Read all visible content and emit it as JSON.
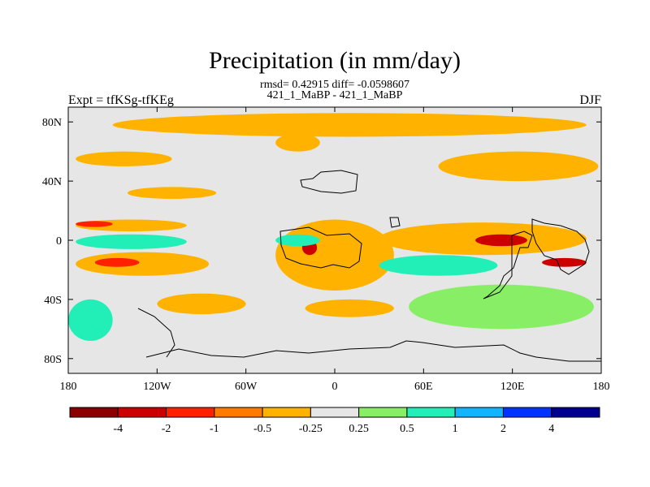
{
  "chart_data": {
    "type": "heatmap",
    "title": "Precipitation (in mm/day)",
    "subtitle_stats": "rmsd= 0.42915  diff= -0.0598607",
    "subtitle_cases": "421_1_MaBP - 421_1_MaBP",
    "left_label": "Expt = tfKSg-tfKEg",
    "right_label": "DJF",
    "x_ticks": [
      {
        "value": -180,
        "label": "180"
      },
      {
        "value": -120,
        "label": "120W"
      },
      {
        "value": -60,
        "label": "60W"
      },
      {
        "value": 0,
        "label": "0"
      },
      {
        "value": 60,
        "label": "60E"
      },
      {
        "value": 120,
        "label": "120E"
      },
      {
        "value": 180,
        "label": "180"
      }
    ],
    "y_ticks": [
      {
        "value": 80,
        "label": "80N"
      },
      {
        "value": 40,
        "label": "40N"
      },
      {
        "value": 0,
        "label": "0"
      },
      {
        "value": -40,
        "label": "40S"
      },
      {
        "value": -80,
        "label": "80S"
      }
    ],
    "xlim": [
      -180,
      180
    ],
    "ylim": [
      -90,
      90
    ],
    "colorbar": {
      "colors": [
        "#8B0000",
        "#CC0000",
        "#FF2000",
        "#FF7A00",
        "#FFB300",
        "#E6E6E6",
        "#88EE66",
        "#22EEB8",
        "#11B5FF",
        "#0033FF",
        "#000090"
      ],
      "labels": [
        "-4",
        "-2",
        "-1",
        "-0.5",
        "-0.25",
        "0.25",
        "0.5",
        "1",
        "2",
        "4"
      ]
    },
    "regions": [
      {
        "name": "arctic-band-1",
        "level": "-0.25",
        "lon": [
          -150,
          170
        ],
        "lat": [
          70,
          86
        ]
      },
      {
        "name": "n-atlantic-patch",
        "level": "-0.25",
        "lon": [
          -40,
          -10
        ],
        "lat": [
          60,
          72
        ]
      },
      {
        "name": "n-pacific-west",
        "level": "-0.25",
        "lon": [
          -175,
          -110
        ],
        "lat": [
          50,
          60
        ]
      },
      {
        "name": "n-asia-patch",
        "level": "-0.25",
        "lon": [
          70,
          178
        ],
        "lat": [
          40,
          60
        ]
      },
      {
        "name": "mid-n-pacific",
        "level": "-0.25",
        "lon": [
          -140,
          -80
        ],
        "lat": [
          28,
          36
        ]
      },
      {
        "name": "tropical-n-pacific",
        "level": "-0.25",
        "lon": [
          -175,
          -100
        ],
        "lat": [
          6,
          14
        ]
      },
      {
        "name": "tropical-n-pacific-core",
        "level": "-1",
        "lon": [
          -175,
          -150
        ],
        "lat": [
          9,
          13
        ]
      },
      {
        "name": "tropical-s-pacific",
        "level": "-0.25",
        "lon": [
          -175,
          -85
        ],
        "lat": [
          -24,
          -8
        ]
      },
      {
        "name": "tropical-s-pacific-core",
        "level": "-1",
        "lon": [
          -162,
          -132
        ],
        "lat": [
          -18,
          -12
        ]
      },
      {
        "name": "tropical-s-pacific-band",
        "level": "0.5",
        "lon": [
          -175,
          -100
        ],
        "lat": [
          -6,
          4
        ]
      },
      {
        "name": "s-pacific-midlat",
        "level": "-0.25",
        "lon": [
          -120,
          -60
        ],
        "lat": [
          -50,
          -36
        ]
      },
      {
        "name": "atlantic-itcz",
        "level": "-0.25",
        "lon": [
          -40,
          40
        ],
        "lat": [
          -34,
          14
        ]
      },
      {
        "name": "atlantic-itcz-core",
        "level": "-2",
        "lon": [
          -22,
          -12
        ],
        "lat": [
          -10,
          0
        ]
      },
      {
        "name": "africa-wet",
        "level": "0.5",
        "lon": [
          -40,
          -10
        ],
        "lat": [
          -4,
          4
        ]
      },
      {
        "name": "india-ocean-band",
        "level": "-0.25",
        "lon": [
          30,
          170
        ],
        "lat": [
          -10,
          12
        ]
      },
      {
        "name": "india-ocean-core",
        "level": "-2",
        "lon": [
          95,
          130
        ],
        "lat": [
          -4,
          4
        ]
      },
      {
        "name": "maritime-continent-wet",
        "level": "0.5",
        "lon": [
          30,
          110
        ],
        "lat": [
          -24,
          -10
        ]
      },
      {
        "name": "s-indian-ocean",
        "level": "0.25",
        "lon": [
          50,
          175
        ],
        "lat": [
          -60,
          -30
        ]
      },
      {
        "name": "s-atlantic-band",
        "level": "-0.25",
        "lon": [
          -20,
          40
        ],
        "lat": [
          -52,
          -40
        ]
      },
      {
        "name": "w-pacific-core",
        "level": "-2",
        "lon": [
          140,
          170
        ],
        "lat": [
          -18,
          -12
        ]
      },
      {
        "name": "southern-ocean-band",
        "level": "0.5",
        "lon": [
          -180,
          -150
        ],
        "lat": [
          -68,
          -40
        ]
      }
    ],
    "grid": false
  }
}
